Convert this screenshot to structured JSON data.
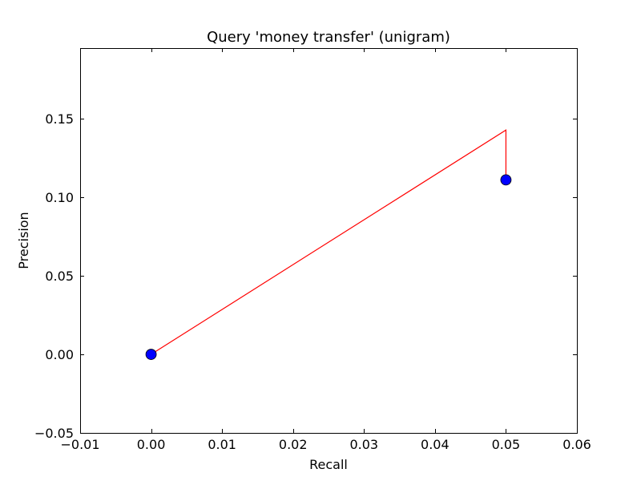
{
  "chart_data": {
    "type": "line",
    "title": "Query 'money transfer' (unigram)",
    "xlabel": "Recall",
    "ylabel": "Precision",
    "xlim": [
      -0.01,
      0.06
    ],
    "ylim": [
      -0.05,
      0.195
    ],
    "xticks": [
      -0.01,
      0.0,
      0.01,
      0.02,
      0.03,
      0.04,
      0.05,
      0.06
    ],
    "xtick_labels": [
      "−0.01",
      "0.00",
      "0.01",
      "0.02",
      "0.03",
      "0.04",
      "0.05",
      "0.06"
    ],
    "yticks": [
      -0.05,
      0.0,
      0.05,
      0.1,
      0.15
    ],
    "ytick_labels": [
      "−0.05",
      "0.00",
      "0.05",
      "0.10",
      "0.15"
    ],
    "grid": false,
    "legend": "none",
    "series": [
      {
        "style": "line",
        "color": "#ff0000",
        "x": [
          0.0,
          0.05,
          0.05
        ],
        "y": [
          0.0,
          0.1428,
          0.1111
        ]
      },
      {
        "style": "markers",
        "color": "#0000ff",
        "x": [
          0.0,
          0.05
        ],
        "y": [
          0.0,
          0.1111
        ]
      }
    ]
  }
}
